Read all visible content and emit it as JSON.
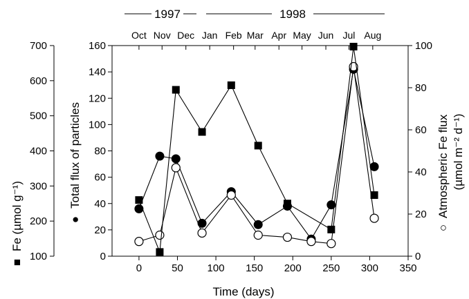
{
  "chart_data": {
    "type": "line",
    "xlabel": "Time (days)",
    "xlim": [
      -35,
      350
    ],
    "x_ticks": [
      "0",
      "50",
      "100",
      "150",
      "200",
      "250",
      "300",
      "350"
    ],
    "y_left_outer": {
      "symbol": "■",
      "label": "Fe (µmol g⁻¹)",
      "ylim": [
        100,
        700
      ],
      "ticks": [
        "100",
        "200",
        "300",
        "400",
        "500",
        "600",
        "700"
      ]
    },
    "y_left_inner": {
      "symbol": "●",
      "label": "Total flux of particles",
      "ylim": [
        0,
        160
      ],
      "ticks": [
        "0",
        "20",
        "40",
        "60",
        "80",
        "100",
        "120",
        "140",
        "160"
      ]
    },
    "y_right": {
      "symbol": "○",
      "label": "Atmospheric Fe flux",
      "label2": "(µmol m⁻² d⁻¹)",
      "ylim": [
        0,
        100
      ],
      "ticks": [
        "0",
        "20",
        "40",
        "60",
        "80",
        "100"
      ]
    },
    "top_axis": {
      "years": [
        "1997",
        "1998"
      ],
      "months": [
        {
          "label": "Oct",
          "x": 0
        },
        {
          "label": "Nov",
          "x": 30
        },
        {
          "label": "Dec",
          "x": 61
        },
        {
          "label": "Jan",
          "x": 92
        },
        {
          "label": "Feb",
          "x": 123
        },
        {
          "label": "Mar",
          "x": 151
        },
        {
          "label": "Apr",
          "x": 182
        },
        {
          "label": "May",
          "x": 212
        },
        {
          "label": "Jun",
          "x": 243
        },
        {
          "label": "Jul",
          "x": 273
        },
        {
          "label": "Aug",
          "x": 304
        }
      ]
    },
    "series": [
      {
        "marker": "square-filled",
        "axis": "y_left_outer",
        "x": [
          0,
          27,
          48,
          82,
          120,
          155,
          193,
          250,
          279,
          306
        ],
        "y": [
          260,
          112,
          574,
          454,
          587,
          415,
          250,
          176,
          697,
          274
        ]
      },
      {
        "marker": "circle-filled",
        "axis": "y_left_inner",
        "x": [
          0,
          27,
          48,
          82,
          120,
          155,
          193,
          224,
          250,
          279,
          306
        ],
        "y": [
          36,
          76,
          74,
          25,
          49,
          24,
          38,
          13,
          39,
          142,
          68
        ]
      },
      {
        "marker": "circle-open",
        "axis": "y_right",
        "x": [
          0,
          27,
          48,
          82,
          120,
          155,
          193,
          224,
          250,
          279,
          306
        ],
        "y": [
          7,
          10,
          42,
          11,
          29,
          10,
          9,
          7,
          6,
          90,
          18
        ]
      }
    ]
  }
}
